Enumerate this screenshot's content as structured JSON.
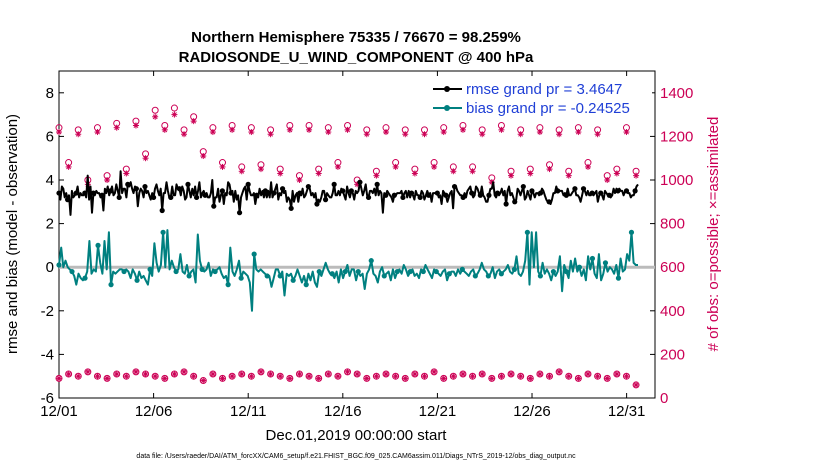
{
  "chart_data": {
    "type": "line",
    "title_line1": "Northern Hemisphere 75335 / 76670 = 98.259%",
    "title_line2": "RADIOSONDE_U_WIND_COMPONENT @ 400 hPa",
    "xlabel": "Dec.01,2019 00:00:00 start",
    "ylabel_left": "rmse and bias (model - observation)",
    "ylabel_right": "# of obs: o=possible; ×=assimilated",
    "footnote": "data file: /Users/raeder/DAI/ATM_forcXX/CAM6_setup/f.e21.FHIST_BGC.f09_025.CAM6assim.011/Diags_NTrS_2019-12/obs_diag_output.nc",
    "xlim": [
      0,
      31.5
    ],
    "ylim_left": [
      -6,
      9
    ],
    "ylim_right": [
      0,
      1500
    ],
    "x_ticks": [
      {
        "value": 0,
        "label": "12/01"
      },
      {
        "value": 5,
        "label": "12/06"
      },
      {
        "value": 10,
        "label": "12/11"
      },
      {
        "value": 15,
        "label": "12/16"
      },
      {
        "value": 20,
        "label": "12/21"
      },
      {
        "value": 25,
        "label": "12/26"
      },
      {
        "value": 30,
        "label": "12/31"
      }
    ],
    "y_ticks_left": [
      "-6",
      "-4",
      "-2",
      "0",
      "2",
      "4",
      "6",
      "8"
    ],
    "y_ticks_right": [
      "0",
      "200",
      "400",
      "600",
      "800",
      "1000",
      "1200",
      "1400"
    ],
    "legend": [
      {
        "name": "rmse grand pr = 3.4647",
        "color": "#000000"
      },
      {
        "name": "bias grand pr = -0.24525",
        "color": "#008080"
      }
    ],
    "series": [
      {
        "name": "rmse",
        "color": "#000000",
        "values": [
          3.4,
          3.1,
          3.7,
          3.6,
          3.2,
          3.4,
          3.1,
          3.3,
          2.4,
          3.5,
          3.2,
          3.3,
          3.4,
          3.7,
          3.2,
          3.4,
          3.3,
          3.3,
          3.4,
          3.2,
          4.2,
          3.1,
          3.7,
          2.5,
          3.4,
          3.3,
          3.5,
          3.4,
          3.4,
          3.2,
          3.3,
          2.6,
          3.6,
          3.4,
          3.7,
          3.3,
          3.5,
          3.7,
          3.3,
          3.4,
          3.8,
          3.5,
          3.2,
          4.4,
          3.4,
          3.6,
          3.6,
          3.2,
          3.8,
          3.7,
          3.9,
          3.6,
          3.4,
          3.7,
          3.6,
          2.8,
          3.4,
          3.6,
          3.5,
          3.2,
          3.7,
          3.4,
          3.5,
          3.3,
          3.1,
          3.4,
          3.2,
          3.6,
          3.8,
          3.5,
          3.3,
          3.6,
          2.6,
          3.4,
          3.4,
          3.9,
          3.5,
          3.2,
          3.2,
          3.7,
          3.3,
          3.3,
          3.8,
          3.6,
          3.6,
          3.3,
          3.7,
          3.5,
          3.1,
          3.2,
          3.8,
          3.5,
          3.2,
          3.6,
          3.3,
          3.7,
          3.2,
          3.5,
          3.9,
          3.2,
          3.4,
          3.5,
          3.3,
          3.4,
          3.2,
          3.2,
          3.4,
          4.0,
          2.8,
          3.2,
          3.2,
          3.6,
          3.0,
          3.3,
          3.5,
          2.9,
          3.4,
          3.3,
          3.9,
          3.8,
          3.4,
          3.5,
          3.0,
          3.5,
          3.1,
          3.3,
          2.5,
          3.2,
          3.4,
          3.6,
          3.7,
          3.1,
          3.8,
          3.5,
          3.3,
          3.3,
          3.4,
          2.9,
          3.3,
          3.2,
          3.6,
          3.3,
          3.5,
          3.2,
          3.5,
          3.2,
          3.5,
          3.2,
          3.9,
          3.2,
          3.4,
          3.6,
          3.8,
          3.1,
          3.4,
          3.3,
          3.6,
          3.4,
          3.5,
          3.0,
          3.2,
          3.1,
          2.7,
          3.5,
          3.0,
          3.3,
          3.4,
          3.0,
          3.4,
          3.3,
          3.6,
          3.2,
          3.3,
          3.5,
          3.7,
          3.6,
          3.3,
          3.4,
          3.2,
          3.4,
          2.9,
          3.1,
          3.0,
          3.2,
          3.5,
          3.5,
          3.1,
          3.4,
          3.3,
          3.2,
          3.2,
          3.4,
          3.8,
          3.3,
          3.3,
          3.5,
          3.3,
          3.6,
          3.5,
          3.3,
          3.1,
          3.7,
          3.4,
          3.2,
          3.5,
          3.4,
          3.1,
          3.5,
          3.4,
          3.5,
          3.9,
          3.6,
          3.3,
          3.5,
          3.8,
          3.3,
          3.2,
          3.5,
          3.5,
          3.4,
          3.6,
          3.3,
          3.8,
          3.3,
          3.5,
          3.4,
          2.5,
          3.4,
          3.3,
          3.5,
          3.4,
          3.3,
          3.2,
          3.0,
          3.3,
          3.3,
          3.4,
          3.4,
          3.4,
          3.5,
          3.2,
          3.4,
          3.5,
          3.2,
          3.5,
          3.2,
          3.4,
          3.3,
          3.1,
          3.5,
          3.3,
          3.3,
          3.2,
          3.5,
          3.4,
          3.1,
          3.3,
          3.5,
          3.3,
          3.4,
          3.0,
          3.4,
          3.4,
          3.4,
          3.4,
          3.2,
          3.3,
          2.9,
          3.5,
          3.4,
          3.3,
          3.0,
          3.2,
          3.4,
          3.5,
          2.7,
          3.7,
          3.7,
          3.5,
          3.4,
          3.3,
          3.3,
          3.2,
          3.4,
          3.2,
          3.5,
          3.6,
          3.7,
          3.4,
          3.2,
          3.3,
          3.7,
          3.6,
          3.4,
          3.3,
          3.7,
          3.3,
          3.2,
          3.0,
          3.0,
          3.3,
          3.6,
          3.6,
          3.9,
          3.3,
          3.2,
          3.4,
          3.3,
          3.4,
          3.6,
          3.3,
          3.5,
          2.9,
          3.5,
          3.7,
          3.3,
          3.4,
          3.2,
          3.0,
          3.1,
          3.6,
          3.5,
          3.3,
          3.5,
          3.7,
          3.1,
          3.2,
          3.5,
          3.3,
          3.1,
          3.5,
          3.4,
          3.2,
          3.4,
          3.4,
          3.3,
          3.4,
          3.6,
          3.5,
          3.3,
          3.1,
          3.0,
          3.0,
          2.9,
          3.1,
          3.4,
          3.4,
          3.7,
          3.5,
          3.5,
          3.5,
          3.5,
          3.3,
          3.4,
          3.3,
          3.6,
          3.3,
          3.3,
          3.4,
          3.5,
          3.6,
          3.3,
          3.3,
          3.2,
          3.0,
          3.3,
          3.6,
          3.5,
          3.3,
          3.5,
          3.3,
          3.3,
          3.4,
          3.3,
          3.4,
          3.5,
          3.0,
          3.3,
          3.4,
          3.3,
          3.1,
          3.5,
          3.4,
          3.3,
          3.3,
          3.2,
          3.3,
          3.6,
          3.4,
          3.6,
          3.5,
          3.6,
          3.5,
          3.5,
          3.3,
          3.5,
          3.5,
          3.4,
          3.4,
          3.2,
          3.3,
          3.3,
          3.5,
          3.7,
          3.8
        ]
      },
      {
        "name": "bias",
        "color": "#008080",
        "values": [
          0.1,
          0.9,
          0.0,
          0.3,
          0.0,
          -0.1,
          -0.2,
          -0.4,
          -0.8,
          -0.3,
          -0.5,
          -0.6,
          -0.5,
          -0.2,
          1.2,
          -0.3,
          -0.1,
          -0.2,
          1.0,
          0.2,
          -0.3,
          1.2,
          -0.1,
          1.6,
          -0.8,
          -0.2,
          -0.3,
          -0.2,
          -0.1,
          -0.1,
          -0.2,
          -0.1,
          -0.2,
          -0.5,
          -0.1,
          -0.3,
          -0.6,
          -0.2,
          -0.5,
          -0.4,
          -0.6,
          -0.8,
          -0.1,
          -0.4,
          1.1,
          0.2,
          -0.2,
          0.1,
          1.6,
          0.0,
          1.7,
          -0.1,
          0.3,
          0.0,
          -0.2,
          -0.1,
          0.6,
          -0.2,
          -0.3,
          0.1,
          -0.4,
          -0.2,
          -0.1,
          -0.7,
          1.5,
          0.3,
          -0.1,
          -0.2,
          -0.1,
          0.2,
          -0.4,
          -0.1,
          -0.2,
          -0.1,
          0.0,
          -0.3,
          -0.5,
          -0.4,
          -0.8,
          0.9,
          -0.2,
          -0.4,
          -0.1,
          0.3,
          -0.5,
          -0.2,
          -0.3,
          -0.4,
          -0.7,
          -2.0,
          0.6,
          -0.1,
          -0.2,
          -0.1,
          -0.2,
          -0.3,
          -0.4,
          -0.4,
          -0.9,
          -0.5,
          -0.1,
          -0.1,
          -0.4,
          -0.2,
          -1.3,
          -0.3,
          -0.4,
          -0.3,
          -0.6,
          -0.4,
          -0.1,
          -0.4,
          -0.7,
          -0.4,
          -0.8,
          -0.3,
          -0.6,
          -0.2,
          -0.7,
          -0.9,
          -0.2,
          -0.4,
          -0.1,
          0.2,
          -0.1,
          -0.3,
          -0.3,
          -0.5,
          -0.2,
          -0.7,
          -0.1,
          -0.5,
          -0.2,
          0.1,
          -0.4,
          -0.1,
          -0.1,
          -0.6,
          -0.2,
          -0.4,
          -0.3,
          -1.0,
          -0.3,
          -0.1,
          0.3,
          -0.3,
          -0.4,
          -0.7,
          -0.2,
          0.0,
          -0.4,
          -0.3,
          -0.2,
          -0.6,
          -0.1,
          -0.5,
          -0.2,
          -0.1,
          -0.3,
          0.1,
          -0.1,
          -0.4,
          -0.2,
          -0.1,
          -0.4,
          -0.3,
          -0.5,
          -0.1,
          -0.2,
          0.1,
          -0.1,
          -0.3,
          -0.5,
          -0.1,
          -0.2,
          -0.3,
          -0.4,
          -0.2,
          -0.1,
          -0.6,
          -0.3,
          -0.2,
          -0.2,
          -0.4,
          -0.1,
          -0.3,
          -0.1,
          -0.2,
          -0.3,
          -0.4,
          -0.2,
          -0.1,
          -0.4,
          -0.3,
          -0.1,
          0.2,
          -0.1,
          -0.2,
          -0.4,
          -0.3,
          0.0,
          -0.5,
          -0.2,
          -0.1,
          -0.3,
          -0.2,
          -0.1,
          0.1,
          -0.2,
          -0.3,
          -0.1,
          0.5,
          -0.3,
          -0.4,
          -0.2,
          0.3,
          1.6,
          -0.8,
          1.6,
          0.0,
          1.6,
          -0.2,
          -0.4,
          0.2,
          -0.3,
          -0.1,
          -0.3,
          -0.6,
          -0.2,
          -0.4,
          -0.2,
          0.5,
          -1.1,
          0.1,
          -0.2,
          -0.5,
          0.3,
          -0.2,
          0.4,
          -0.2,
          0.0,
          -0.4,
          -0.1,
          -0.6,
          0.5,
          -0.1,
          0.4,
          -0.3,
          -0.5,
          0.6,
          -0.6,
          -0.3,
          0.2,
          -0.2,
          0.0,
          -0.1,
          -0.3,
          0.1,
          -0.5,
          0.4,
          -0.2,
          -0.1,
          0.6,
          0.3,
          1.6,
          0.2,
          0.1,
          0.1
        ]
      }
    ],
    "obs_possible": [
      90,
      110,
      100,
      120,
      100,
      90,
      110,
      100,
      120,
      110,
      100,
      90,
      110,
      120,
      100,
      80,
      110,
      90,
      100,
      110,
      100,
      120,
      110,
      100,
      90,
      110,
      100,
      90,
      110,
      100,
      120,
      110,
      90,
      100,
      110,
      100,
      90,
      110,
      100,
      120,
      90,
      100,
      110,
      100,
      110,
      90,
      100,
      110,
      100,
      90,
      110,
      100,
      120,
      100,
      90,
      110,
      100,
      90,
      110,
      100,
      60
    ],
    "obs_possible_upper": [
      1240,
      1080,
      1230,
      1000,
      1240,
      1020,
      1260,
      1050,
      1270,
      1120,
      1320,
      1250,
      1330,
      1230,
      1290,
      1130,
      1240,
      1080,
      1250,
      1060,
      1240,
      1070,
      1230,
      1050,
      1250,
      1020,
      1250,
      1050,
      1240,
      1080,
      1250,
      1000,
      1230,
      1040,
      1240,
      1080,
      1230,
      1050,
      1230,
      1080,
      1240,
      1060,
      1250,
      1060,
      1230,
      1010,
      1250,
      1040,
      1230,
      1050,
      1240,
      1070,
      1230,
      1040,
      1240,
      1080,
      1230,
      1020,
      1050,
      1240,
      1040
    ],
    "obs_assimilated": [
      1220,
      1060,
      1210,
      980,
      1220,
      1000,
      1240,
      1030,
      1250,
      1100,
      1290,
      1230,
      1300,
      1210,
      1270,
      1110,
      1220,
      1060,
      1230,
      1040,
      1220,
      1050,
      1210,
      1030,
      1230,
      1000,
      1230,
      1030,
      1220,
      1060,
      1230,
      980,
      1210,
      1020,
      1220,
      1060,
      1210,
      1030,
      1210,
      1060,
      1220,
      1040,
      1230,
      1040,
      1210,
      990,
      1230,
      1020,
      1210,
      1030,
      1220,
      1050,
      1210,
      1020,
      1220,
      1060,
      1210,
      1000,
      1030,
      1220,
      1020
    ]
  }
}
